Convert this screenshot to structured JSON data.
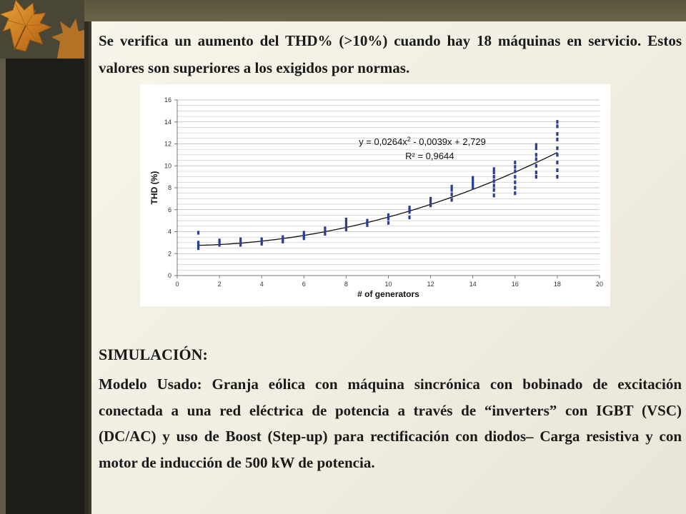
{
  "slide": {
    "heading": "Se verifica un aumento del THD% (>10%) cuando hay 18 máquinas en servicio. Estos valores son superiores a los exigidos por normas.",
    "section_title": "SIMULACIÓN:",
    "body": "Modelo Usado: Granja eólica con máquina sincrónica con bobinado de excitación conectada a una red eléctrica de potencia a través de “inverters” con IGBT (VSC) (DC/AC) y uso de Boost (Step-up) para rectificación con diodos– Carga resistiva y con motor de inducción de 500 kW de potencia."
  },
  "colors": {
    "points": "#2b3f8f",
    "trendline": "#111111",
    "grid": "#b8b8b8"
  },
  "chart_data": {
    "type": "scatter",
    "xlabel": "# of generators",
    "ylabel": "THD (%)",
    "xlim": [
      0,
      20
    ],
    "ylim": [
      0,
      16
    ],
    "xticks": [
      0,
      2,
      4,
      6,
      8,
      10,
      12,
      14,
      16,
      18,
      20
    ],
    "yticks": [
      0,
      2,
      4,
      6,
      8,
      10,
      12,
      14,
      16
    ],
    "grid": "horizontal",
    "equation_line1": "y = 0,0264x",
    "equation_exp": "2",
    "equation_line1_rest": " - 0,0039x + 2,729",
    "equation_line2": "R² = 0,9644",
    "trendline": {
      "type": "polynomial",
      "coefficients": [
        0.0264,
        -0.0039,
        2.729
      ],
      "x_range": [
        1,
        18
      ]
    },
    "points": [
      [
        1,
        2.5
      ],
      [
        1,
        2.7
      ],
      [
        1,
        2.9
      ],
      [
        1,
        3.0
      ],
      [
        1,
        3.9
      ],
      [
        2,
        2.8
      ],
      [
        2,
        3.0
      ],
      [
        2,
        3.2
      ],
      [
        3,
        2.8
      ],
      [
        3,
        3.0
      ],
      [
        3,
        3.3
      ],
      [
        4,
        2.9
      ],
      [
        4,
        3.1
      ],
      [
        4,
        3.3
      ],
      [
        5,
        3.1
      ],
      [
        5,
        3.3
      ],
      [
        5,
        3.5
      ],
      [
        6,
        3.4
      ],
      [
        6,
        3.6
      ],
      [
        6,
        3.9
      ],
      [
        7,
        3.8
      ],
      [
        7,
        4.0
      ],
      [
        7,
        4.3
      ],
      [
        8,
        4.2
      ],
      [
        8,
        4.5
      ],
      [
        8,
        4.8
      ],
      [
        8,
        5.1
      ],
      [
        9,
        4.6
      ],
      [
        9,
        4.8
      ],
      [
        9,
        5.0
      ],
      [
        10,
        4.8
      ],
      [
        10,
        5.2
      ],
      [
        10,
        5.5
      ],
      [
        11,
        5.3
      ],
      [
        11,
        5.8
      ],
      [
        11,
        6.0
      ],
      [
        11,
        6.2
      ],
      [
        12,
        6.4
      ],
      [
        12,
        6.7
      ],
      [
        12,
        7.0
      ],
      [
        13,
        6.9
      ],
      [
        13,
        7.4
      ],
      [
        13,
        7.8
      ],
      [
        13,
        8.1
      ],
      [
        14,
        8.0
      ],
      [
        14,
        8.3
      ],
      [
        14,
        8.6
      ],
      [
        14,
        8.9
      ],
      [
        15,
        7.3
      ],
      [
        15,
        7.8
      ],
      [
        15,
        8.2
      ],
      [
        15,
        8.6
      ],
      [
        15,
        9.0
      ],
      [
        15,
        9.4
      ],
      [
        15,
        9.7
      ],
      [
        16,
        7.5
      ],
      [
        16,
        8.0
      ],
      [
        16,
        8.5
      ],
      [
        16,
        9.0
      ],
      [
        16,
        9.5
      ],
      [
        16,
        9.9
      ],
      [
        16,
        10.3
      ],
      [
        17,
        9.0
      ],
      [
        17,
        9.4
      ],
      [
        17,
        10.0
      ],
      [
        17,
        10.6
      ],
      [
        17,
        11.0
      ],
      [
        17,
        11.6
      ],
      [
        17,
        11.9
      ],
      [
        18,
        9.0
      ],
      [
        18,
        9.6
      ],
      [
        18,
        10.3
      ],
      [
        18,
        11.0
      ],
      [
        18,
        11.6
      ],
      [
        18,
        12.4
      ],
      [
        18,
        12.9
      ],
      [
        18,
        13.6
      ],
      [
        18,
        14.0
      ]
    ]
  }
}
